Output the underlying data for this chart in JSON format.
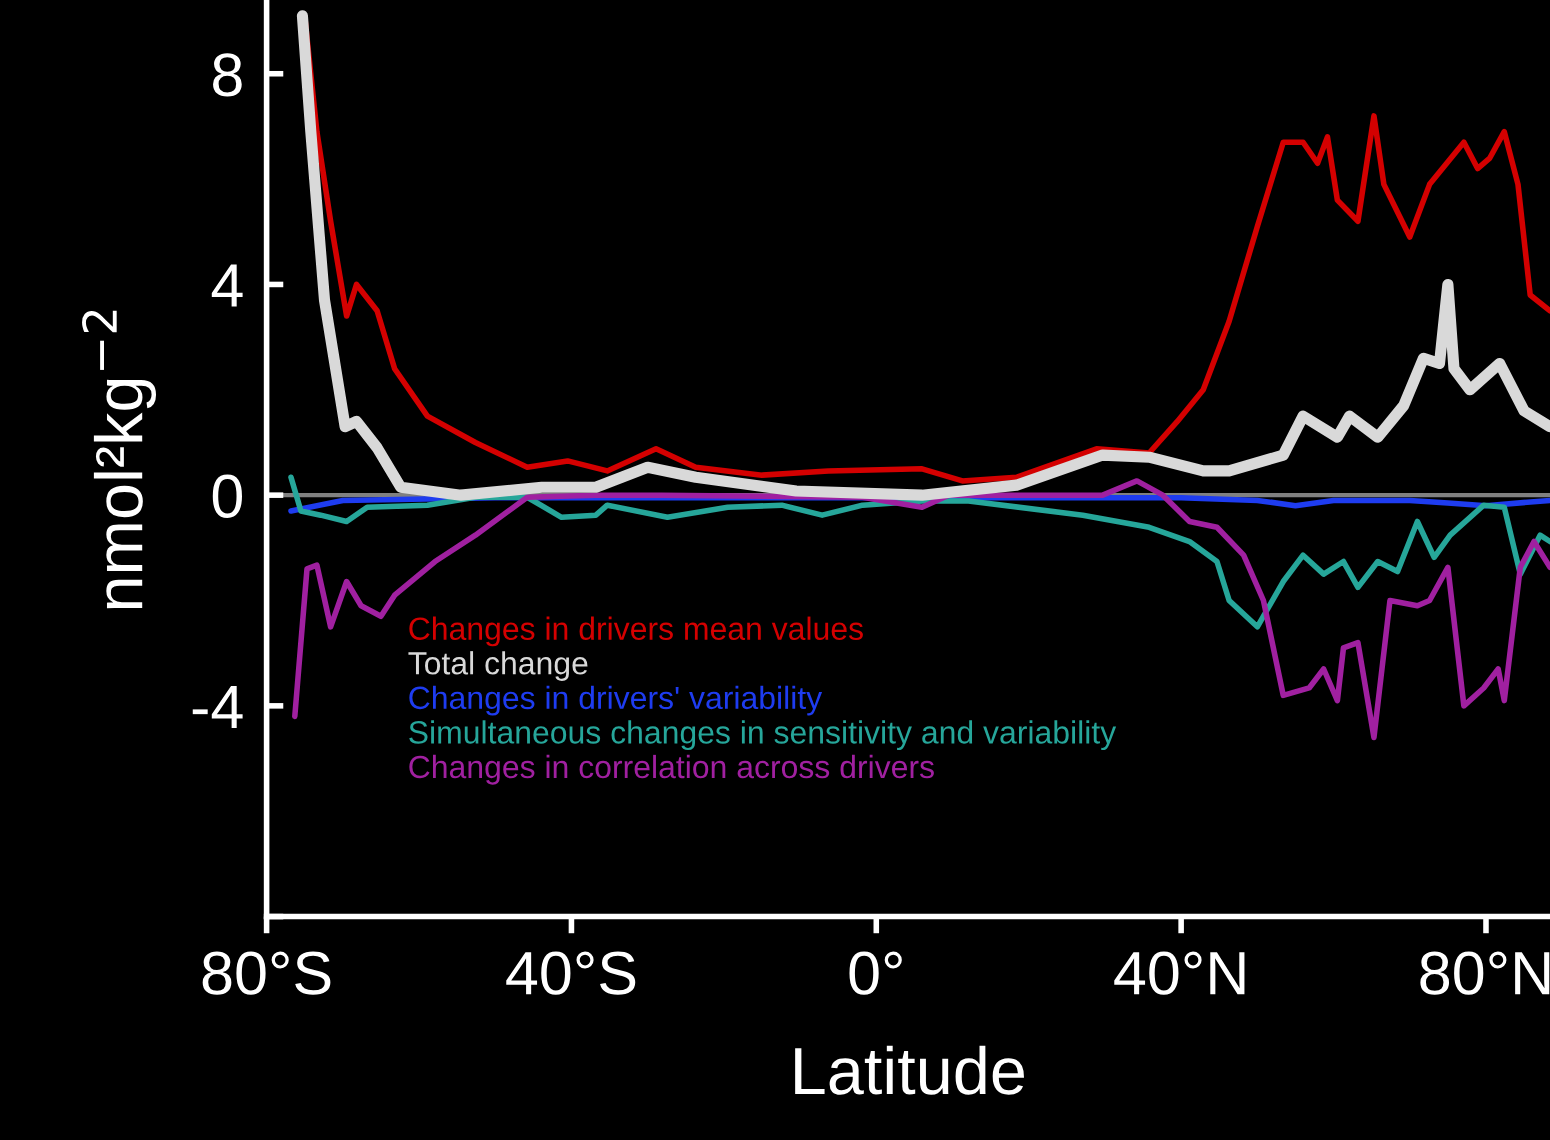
{
  "chart_data": {
    "type": "line",
    "xlabel": "Latitude",
    "ylabel": "nmol²kg$^{−2}$",
    "xlim": [
      -80,
      88.4
    ],
    "ylim": [
      -8,
      9.4
    ],
    "xticks": [
      {
        "value": -80,
        "label": "80°S"
      },
      {
        "value": -40,
        "label": "40°S"
      },
      {
        "value": 0,
        "label": "0°"
      },
      {
        "value": 40,
        "label": "40°N"
      },
      {
        "value": 80,
        "label": "80°N"
      }
    ],
    "yticks": [
      {
        "value": -8,
        "label": null
      },
      -4,
      0,
      4,
      8
    ],
    "grid": false,
    "legend": "bottom left",
    "ref_lines": [
      {
        "axis": "y",
        "value": 0,
        "color": "#808080"
      }
    ],
    "series": [
      {
        "name": "Changes in drivers mean values",
        "color": "#d40000",
        "x": [
          -75,
          -73.4,
          -71.6,
          -69.5,
          -68.2,
          -65.5,
          -63.2,
          -58.9,
          -52.6,
          -45.8,
          -40.5,
          -35.3,
          -28.9,
          -23.7,
          -15,
          -6.3,
          6,
          11.3,
          18.4,
          28.9,
          35.8,
          39.5,
          42.9,
          46.3,
          50,
          53.4,
          56,
          57.9,
          59.2,
          60.5,
          63.2,
          65.3,
          66.6,
          70,
          72.6,
          77.1,
          78.9,
          80.5,
          82.4,
          84.2,
          85.8,
          88.4
        ],
        "values": [
          9.1,
          6.9,
          5.2,
          3.4,
          4.0,
          3.5,
          2.4,
          1.5,
          1.0,
          0.53,
          0.65,
          0.46,
          0.88,
          0.53,
          0.38,
          0.46,
          0.5,
          0.27,
          0.34,
          0.88,
          0.8,
          1.4,
          2.0,
          3.3,
          5.1,
          6.7,
          6.7,
          6.3,
          6.8,
          5.6,
          5.2,
          7.2,
          5.9,
          4.9,
          5.9,
          6.7,
          6.2,
          6.4,
          6.9,
          5.9,
          3.8,
          3.5
        ]
      },
      {
        "name": "Total change",
        "color": "#d9d9d9",
        "x": [
          -75.3,
          -74.2,
          -72.4,
          -69.7,
          -68.2,
          -65.5,
          -62.4,
          -54.5,
          -43.9,
          -36.8,
          -30,
          -23.7,
          -10.5,
          6,
          18.4,
          29.7,
          35.8,
          42.9,
          46.3,
          53.4,
          56,
          60.5,
          62.1,
          65.8,
          69.2,
          71.8,
          73.9,
          75,
          75.8,
          77.9,
          81.8,
          85,
          88.4
        ],
        "values": [
          9.1,
          6.9,
          3.7,
          1.3,
          1.4,
          0.9,
          0.15,
          0.0,
          0.15,
          0.15,
          0.53,
          0.34,
          0.08,
          0.0,
          0.19,
          0.76,
          0.72,
          0.46,
          0.46,
          0.76,
          1.5,
          1.1,
          1.5,
          1.1,
          1.7,
          2.6,
          2.5,
          4.0,
          2.4,
          2.0,
          2.5,
          1.6,
          1.3
        ]
      },
      {
        "name": "Changes in drivers' variability",
        "color": "#1e3cf0",
        "x": [
          -76.8,
          -70,
          -50,
          -20,
          0,
          20,
          40,
          50,
          55,
          60,
          70,
          75,
          80,
          88.4
        ],
        "values": [
          -0.3,
          -0.1,
          -0.05,
          -0.05,
          -0.05,
          -0.05,
          -0.05,
          -0.1,
          -0.2,
          -0.1,
          -0.1,
          -0.15,
          -0.2,
          -0.1
        ]
      },
      {
        "name": "Simultaneous changes in sensitivity and variability",
        "color": "#26a69a",
        "x": [
          -76.8,
          -75.5,
          -72.9,
          -69.5,
          -66.8,
          -58.9,
          -52.6,
          -45.8,
          -41.3,
          -36.8,
          -35.3,
          -27.4,
          -19.5,
          -12.4,
          -7.1,
          -1.8,
          6,
          12.1,
          27.1,
          35.8,
          41.1,
          44.7,
          46.3,
          50,
          53.4,
          56,
          58.7,
          61.3,
          63.2,
          65.8,
          68.4,
          71,
          73.2,
          75.3,
          79.7,
          82.4,
          84.5,
          87.1,
          88.4
        ],
        "values": [
          0.34,
          -0.3,
          -0.38,
          -0.5,
          -0.23,
          -0.19,
          -0.04,
          -0.04,
          -0.42,
          -0.38,
          -0.19,
          -0.42,
          -0.23,
          -0.19,
          -0.38,
          -0.19,
          -0.11,
          -0.11,
          -0.38,
          -0.61,
          -0.88,
          -1.26,
          -2.0,
          -2.5,
          -1.64,
          -1.14,
          -1.5,
          -1.26,
          -1.75,
          -1.26,
          -1.45,
          -0.5,
          -1.18,
          -0.76,
          -0.19,
          -0.23,
          -1.5,
          -0.76,
          -0.88
        ]
      },
      {
        "name": "Changes in correlation across drivers",
        "color": "#a020a0",
        "x": [
          -76.3,
          -74.7,
          -73.4,
          -71.6,
          -69.5,
          -67.6,
          -65,
          -63.2,
          -57.9,
          -52.6,
          -45.8,
          -36.8,
          -28.2,
          -1.8,
          6,
          9.5,
          29.7,
          34.2,
          37.6,
          41.1,
          44.7,
          48.2,
          50.8,
          53.4,
          56.8,
          58.7,
          60.5,
          61.3,
          63.2,
          65.3,
          67.4,
          71,
          72.6,
          75,
          77.1,
          79.7,
          81.6,
          82.4,
          84.5,
          86.3,
          88.4
        ],
        "values": [
          -4.2,
          -1.4,
          -1.33,
          -2.5,
          -1.64,
          -2.1,
          -2.3,
          -1.9,
          -1.26,
          -0.76,
          -0.04,
          0,
          0,
          -0.04,
          -0.23,
          0,
          0,
          0.27,
          0,
          -0.5,
          -0.61,
          -1.14,
          -2.0,
          -3.8,
          -3.66,
          -3.3,
          -3.9,
          -2.9,
          -2.8,
          -4.6,
          -2.0,
          -2.1,
          -2.0,
          -1.37,
          -4.0,
          -3.66,
          -3.3,
          -3.9,
          -1.37,
          -0.88,
          -1.37
        ]
      }
    ]
  }
}
